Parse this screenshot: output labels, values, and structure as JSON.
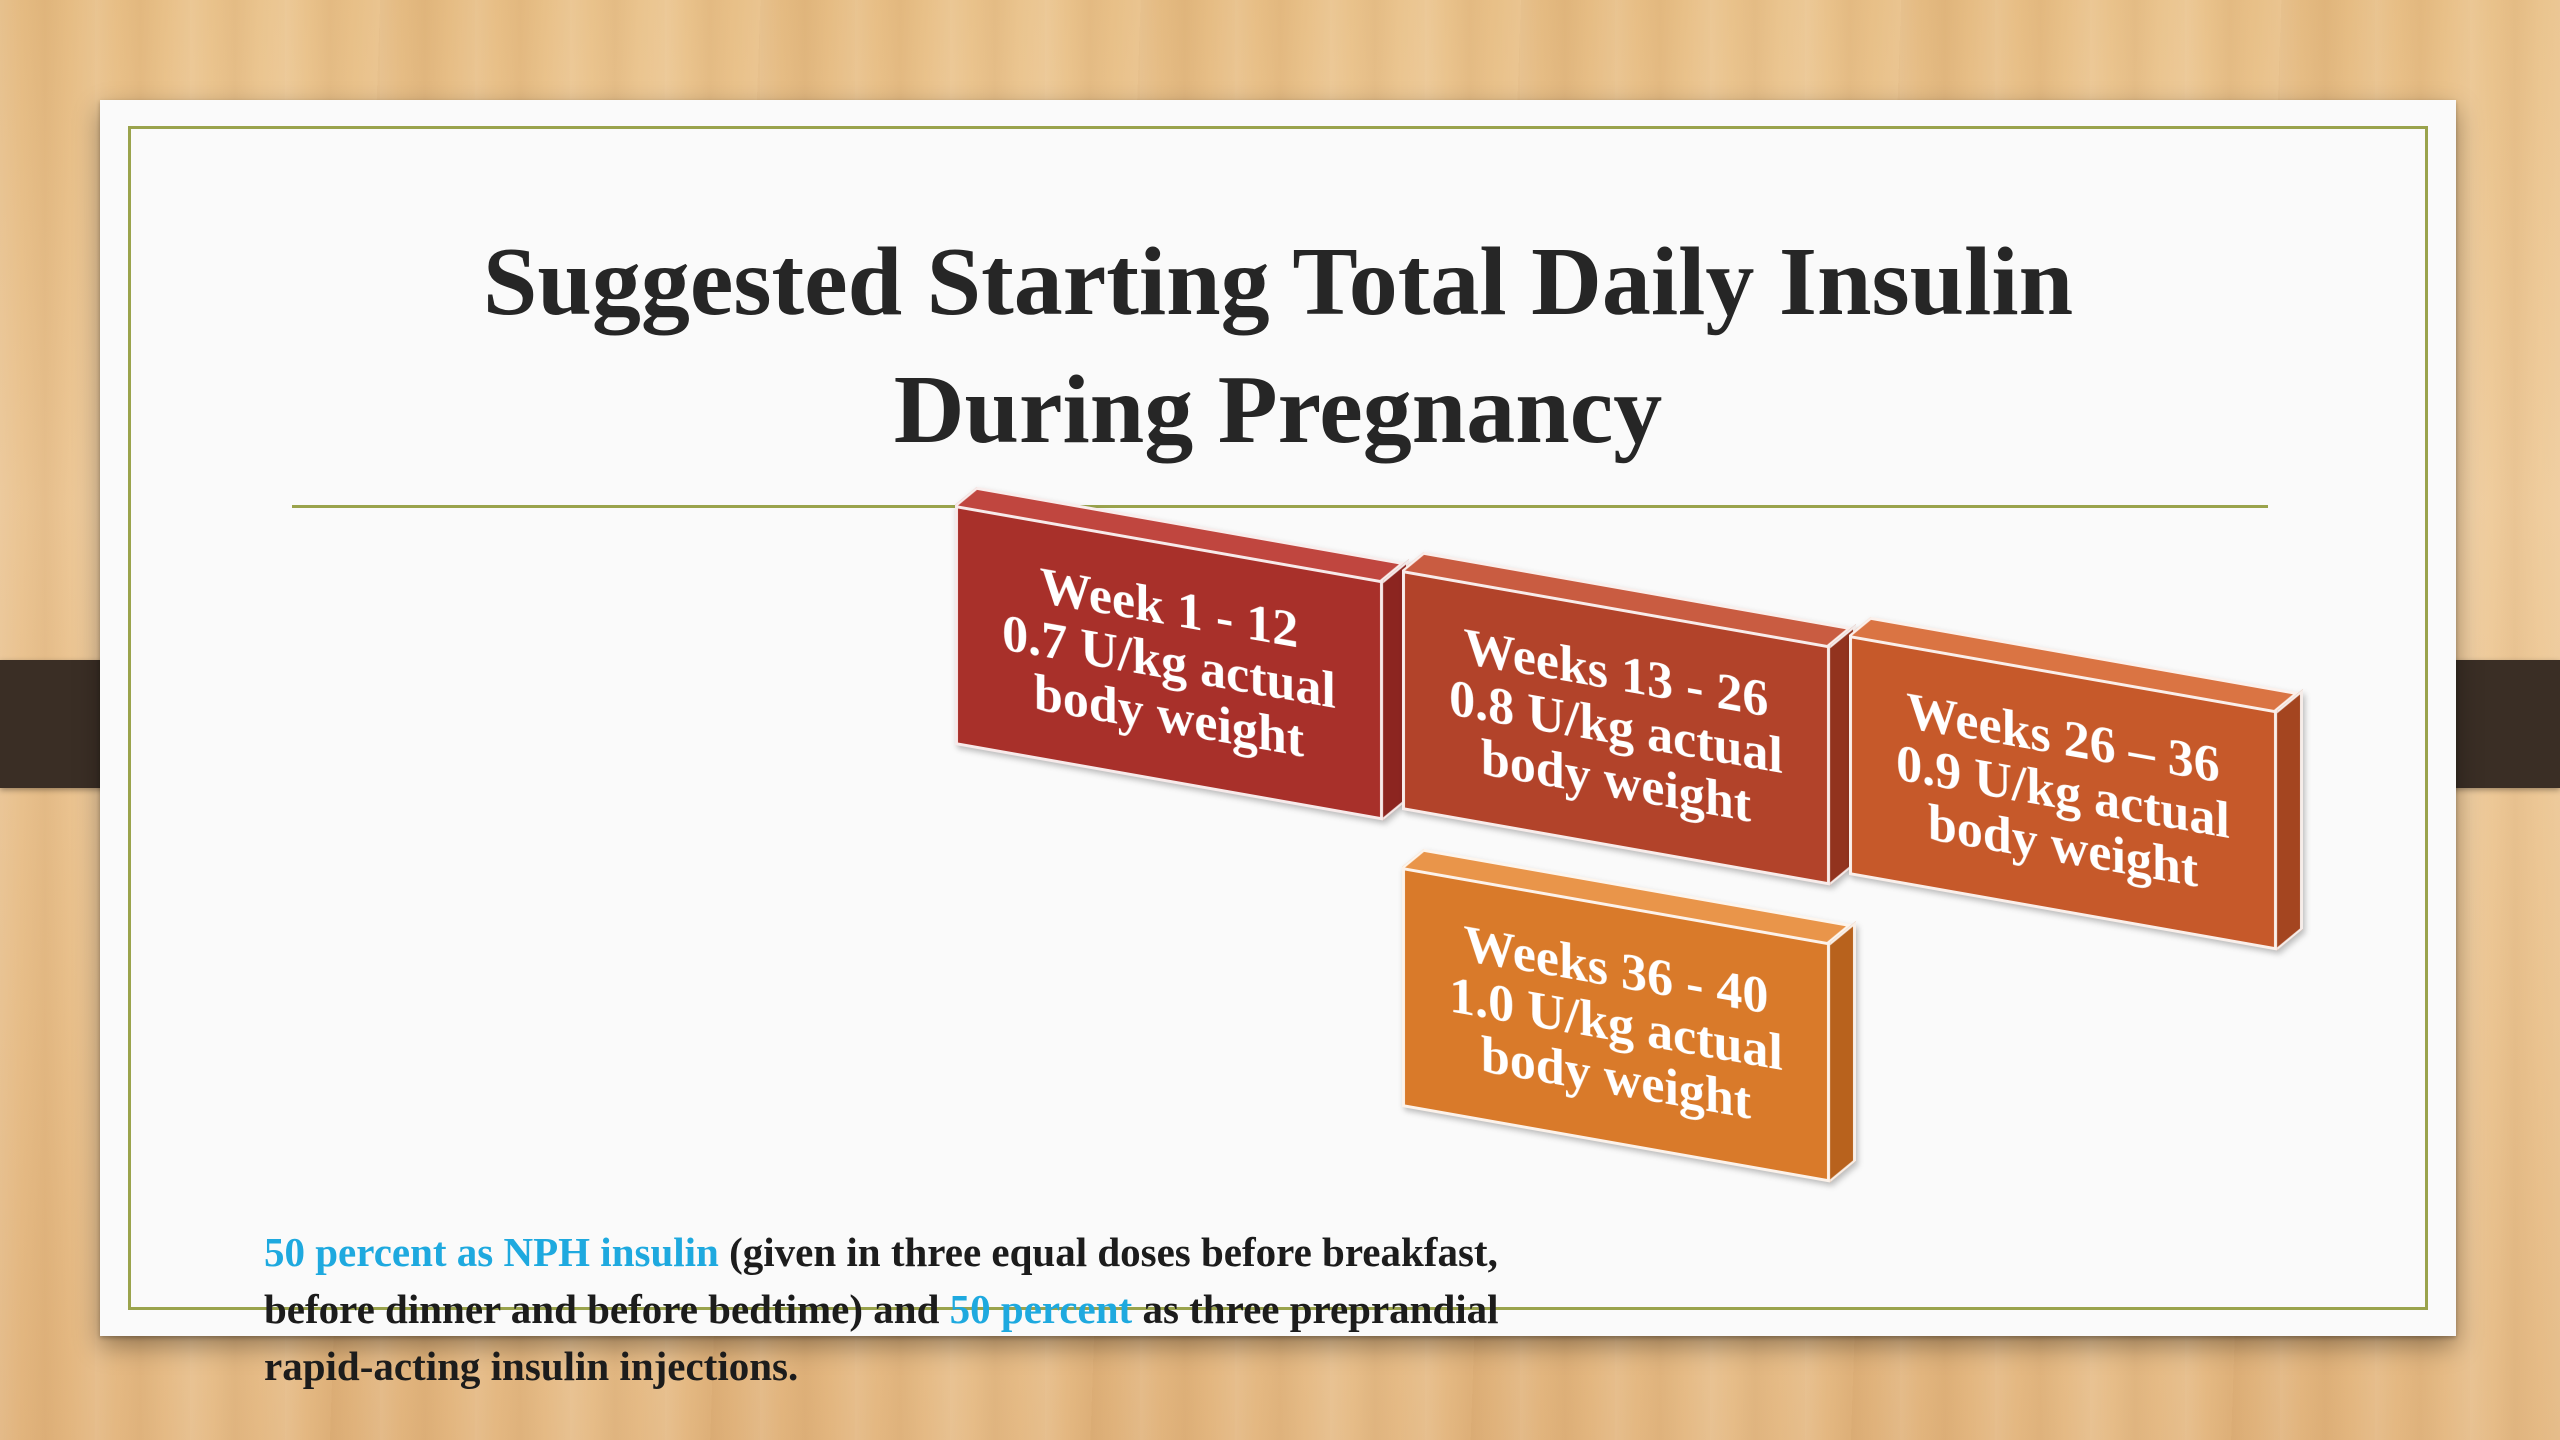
{
  "slide": {
    "title_line1": "Suggested Starting Total Daily Insulin",
    "title_line2": "During Pregnancy"
  },
  "boxes": [
    {
      "line1": "Week 1 - 12",
      "line2": "0.7 U/kg actual",
      "line3": "body weight",
      "color": "#a8302a",
      "top_color": "#c0463f",
      "side_color": "#8c2520"
    },
    {
      "line1": "Weeks 13 - 26",
      "line2": "0.8 U/kg actual",
      "line3": "body weight",
      "color": "#b2432a",
      "top_color": "#c95c41",
      "side_color": "#92331e"
    },
    {
      "line1": "Weeks 26 – 36",
      "line2": "0.9 U/kg actual",
      "line3": "body weight",
      "color": "#c6592a",
      "top_color": "#da7443",
      "side_color": "#a44520"
    },
    {
      "line1": "Weeks 36 - 40",
      "line2": "1.0 U/kg actual",
      "line3": "body weight",
      "color": "#d97a2a",
      "top_color": "#e9954a",
      "side_color": "#b8621d"
    }
  ],
  "notes": {
    "part1": "50 percent as NPH insulin",
    "part2": " (given in three equal doses before breakfast, before dinner and before bedtime) and ",
    "part3": "50 percent",
    "part4": " as three preprandial rapid-acting insulin injections."
  },
  "colors": {
    "accent_line": "#9aa34c",
    "highlight_text": "#1ea9df",
    "title_text": "#262626"
  }
}
